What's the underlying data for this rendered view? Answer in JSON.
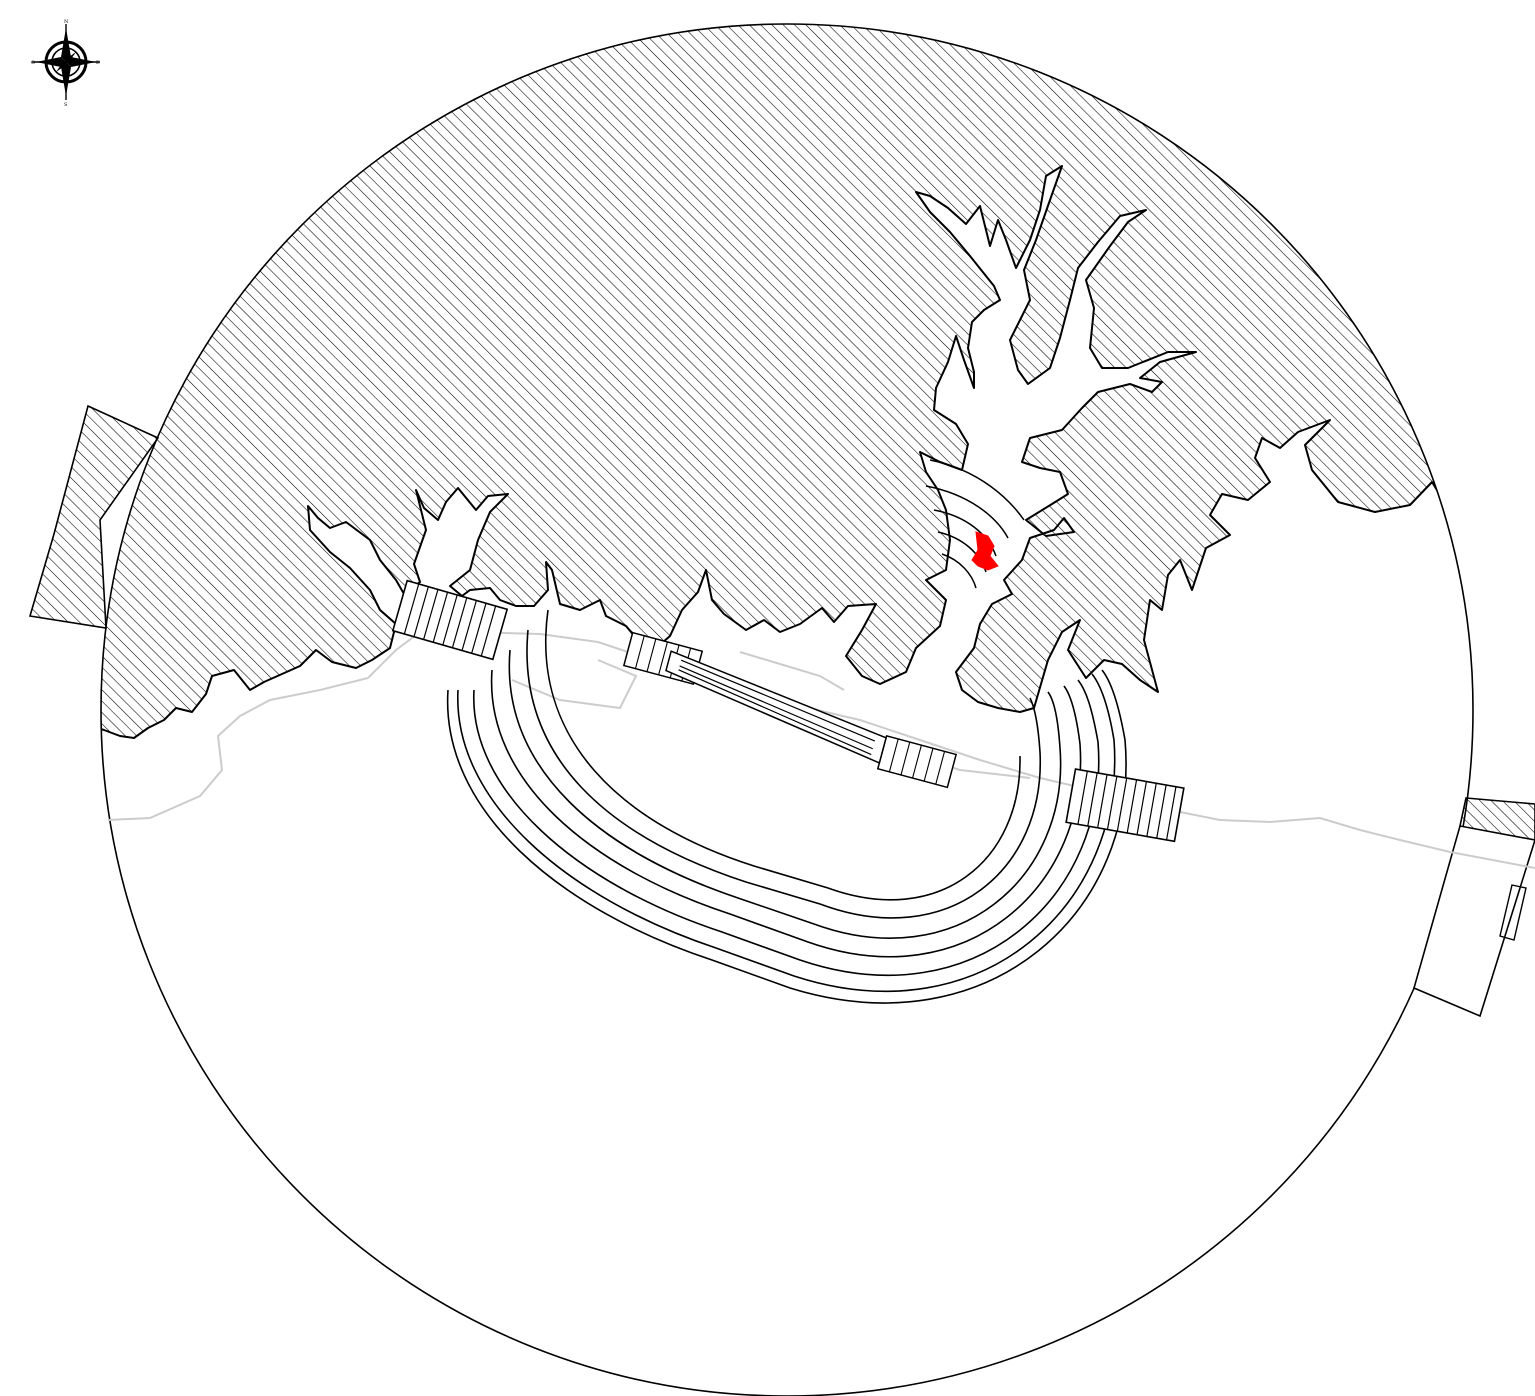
{
  "map": {
    "kind": "site-plan",
    "colors": {
      "ink": "#000000",
      "faint_linework": "#cccccc",
      "highlight": "#ff0000",
      "background": "#ffffff"
    },
    "compass": {
      "icon": "compass-rose-icon",
      "north": "N",
      "south": "S",
      "east": "E",
      "west": "O"
    }
  }
}
